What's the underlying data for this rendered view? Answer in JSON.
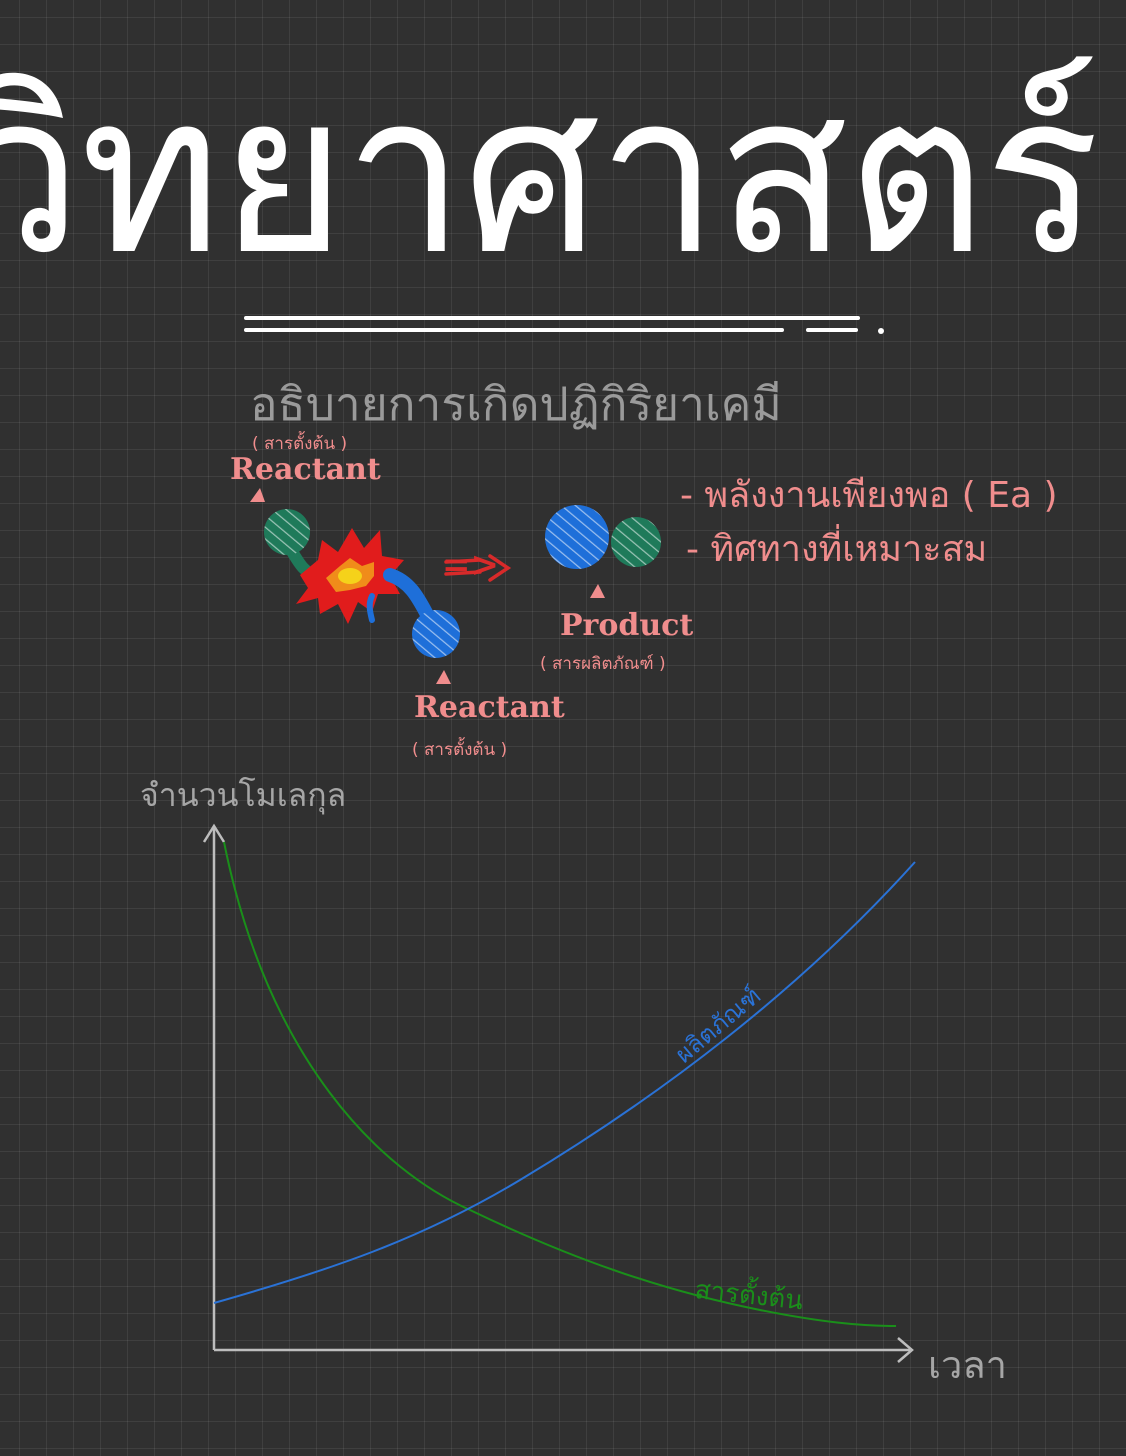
{
  "title": "วิทยาศาสตร์",
  "subtitle": "อธิบายการเกิดปฏิกิริยาเคมี",
  "diagram": {
    "reactant_top": {
      "label": "Reactant",
      "note": "( สารตั้งต้น )"
    },
    "reactant_bottom": {
      "label": "Reactant",
      "note": "( สารตั้งต้น )"
    },
    "product": {
      "label": "Product",
      "note": "( สารผลิตภัณฑ์ )"
    },
    "arrow": "=>",
    "conditions": [
      "- พลังงานเพียงพอ ( Ea )",
      "- ทิศทางที่เหมาะสม"
    ]
  },
  "colors": {
    "background": "#303030",
    "pink": "#f08d8d",
    "green_molecule": "#1f7a5a",
    "blue_molecule": "#1e6fd9",
    "explosion_red": "#e11c1c",
    "explosion_orange": "#f08c1a",
    "reactant_curve": "#1a8f1a",
    "product_curve": "#2a72d6",
    "axis": "#bdbdbd"
  },
  "chart_data": {
    "type": "line",
    "xlabel": "เวลา",
    "ylabel": "จำนวนโมเลกุล",
    "series": [
      {
        "name": "ผลิตภัณฑ์",
        "trend": "increasing"
      },
      {
        "name": "สารตั้งต้น",
        "trend": "decreasing"
      }
    ],
    "grid": false,
    "legend": "inline-labels"
  }
}
